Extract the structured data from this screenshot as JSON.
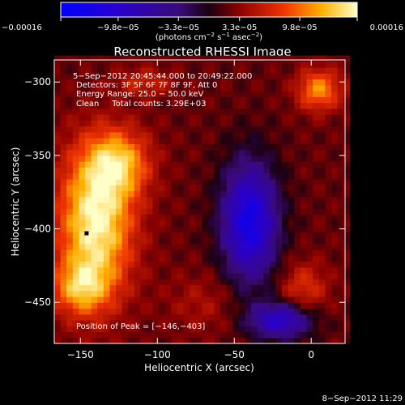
{
  "chart_data": {
    "type": "heatmap",
    "title": "Reconstructed RHESSI Image",
    "xlabel": "Heliocentric X (arcsec)",
    "ylabel": "Heliocentric Y (arcsec)",
    "xlim": [
      -167,
      22
    ],
    "ylim": [
      -478,
      -285
    ],
    "x_ticks": [
      -150,
      -100,
      -50,
      0
    ],
    "x_tick_labels": [
      "−150",
      "−100",
      "−50",
      "0"
    ],
    "y_ticks": [
      -300,
      -350,
      -400,
      -450
    ],
    "y_tick_labels": [
      "−300",
      "−350",
      "−400",
      "−450"
    ],
    "colorbar": {
      "range": [
        -0.00016,
        0.00016
      ],
      "tick_values": [
        -0.00016,
        -9.8e-05,
        -3.3e-05,
        3.3e-05,
        9.8e-05,
        0.00016
      ],
      "tick_labels": [
        "−0.00016",
        "−9.8e−05",
        "−3.3e−05",
        "3.3e−05",
        "9.8e−05",
        "0.00016"
      ],
      "units_parts": [
        "(photons cm",
        "−2",
        " s",
        "−1",
        " asec",
        "−2",
        ")"
      ]
    },
    "annotations": [
      "5−Sep−2012 20:45:44.000 to 20:49:22.000",
      "Detectors: 3F 5F 6F 7F 8F 9F, Att 0",
      "Energy Range: 25.0 − 50.0 keV",
      "Clean     Total counts: 3.29E+03"
    ],
    "peak_label": "Position of Peak = [−146,−403]",
    "peak": [
      -146,
      -403
    ],
    "regions": [
      {
        "x": -140,
        "y": -395,
        "rx": 24,
        "ry": 50,
        "value": 0.00016
      },
      {
        "x": -125,
        "y": -355,
        "rx": 20,
        "ry": 22,
        "value": 0.00011
      },
      {
        "x": -150,
        "y": -440,
        "rx": 18,
        "ry": 18,
        "value": 0.0001
      },
      {
        "x": 5,
        "y": -305,
        "rx": 14,
        "ry": 14,
        "value": 0.00011
      },
      {
        "x": -108,
        "y": -300,
        "rx": 18,
        "ry": 10,
        "value": 6e-05
      },
      {
        "x": -5,
        "y": -440,
        "rx": 16,
        "ry": 18,
        "value": 7e-05
      },
      {
        "x": -40,
        "y": -395,
        "rx": 18,
        "ry": 40,
        "value": -0.00013
      },
      {
        "x": -20,
        "y": -462,
        "rx": 20,
        "ry": 12,
        "value": -0.0001
      },
      {
        "x": -70,
        "y": -450,
        "rx": 24,
        "ry": 20,
        "value": 4.5e-05
      }
    ]
  },
  "footer": {
    "date": "8−Sep−2012 11:29"
  }
}
